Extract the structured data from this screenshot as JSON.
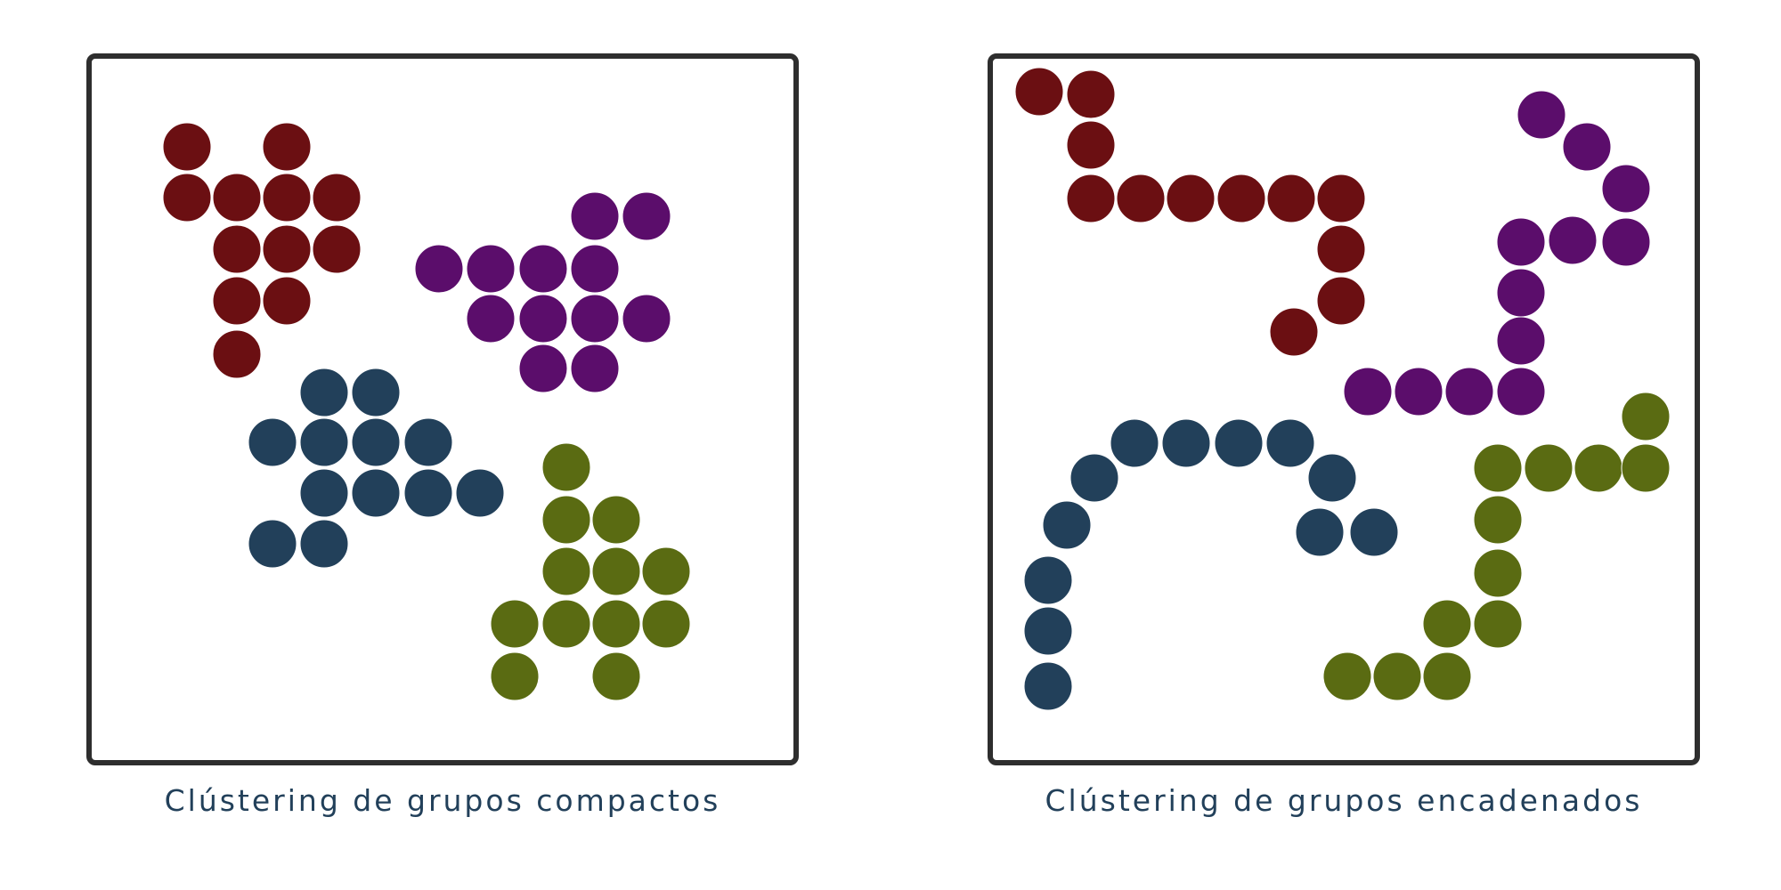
{
  "colors": {
    "red": "#6b0f12",
    "purple": "#5b0d6b",
    "navy": "#22405a",
    "olive": "#5a6b12",
    "frame": "#2e2e2e",
    "caption": "#22405a"
  },
  "panels": [
    {
      "caption": "Clústering de grupos compactos",
      "clusters": [
        {
          "color": "red",
          "points": [
            [
              210,
              165
            ],
            [
              322,
              165
            ],
            [
              210,
              222
            ],
            [
              266,
              222
            ],
            [
              322,
              222
            ],
            [
              378,
              222
            ],
            [
              266,
              280
            ],
            [
              322,
              280
            ],
            [
              378,
              280
            ],
            [
              266,
              338
            ],
            [
              322,
              338
            ],
            [
              266,
              398
            ]
          ]
        },
        {
          "color": "purple",
          "points": [
            [
              668,
              243
            ],
            [
              726,
              243
            ],
            [
              493,
              302
            ],
            [
              551,
              302
            ],
            [
              610,
              302
            ],
            [
              668,
              302
            ],
            [
              551,
              358
            ],
            [
              610,
              358
            ],
            [
              668,
              358
            ],
            [
              726,
              358
            ],
            [
              610,
              414
            ],
            [
              668,
              414
            ]
          ]
        },
        {
          "color": "navy",
          "points": [
            [
              364,
              441
            ],
            [
              422,
              441
            ],
            [
              306,
              497
            ],
            [
              364,
              497
            ],
            [
              422,
              497
            ],
            [
              481,
              497
            ],
            [
              364,
              554
            ],
            [
              422,
              554
            ],
            [
              481,
              554
            ],
            [
              539,
              554
            ],
            [
              306,
              611
            ],
            [
              364,
              611
            ]
          ]
        },
        {
          "color": "olive",
          "points": [
            [
              636,
              525
            ],
            [
              636,
              584
            ],
            [
              692,
              584
            ],
            [
              636,
              642
            ],
            [
              692,
              642
            ],
            [
              748,
              642
            ],
            [
              578,
              701
            ],
            [
              636,
              701
            ],
            [
              692,
              701
            ],
            [
              748,
              701
            ],
            [
              578,
              760
            ],
            [
              692,
              760
            ]
          ]
        }
      ]
    },
    {
      "caption": "Clústering de grupos encadenados",
      "clusters": [
        {
          "color": "red",
          "points": [
            [
              1167,
              103
            ],
            [
              1225,
              106
            ],
            [
              1225,
              163
            ],
            [
              1225,
              223
            ],
            [
              1281,
              223
            ],
            [
              1337,
              223
            ],
            [
              1394,
              223
            ],
            [
              1450,
              223
            ],
            [
              1506,
              223
            ],
            [
              1506,
              280
            ],
            [
              1506,
              338
            ],
            [
              1453,
              373
            ]
          ]
        },
        {
          "color": "purple",
          "points": [
            [
              1731,
              129
            ],
            [
              1782,
              165
            ],
            [
              1826,
              212
            ],
            [
              1826,
              272
            ],
            [
              1766,
              270
            ],
            [
              1708,
              272
            ],
            [
              1708,
              329
            ],
            [
              1708,
              383
            ],
            [
              1708,
              440
            ],
            [
              1650,
              440
            ],
            [
              1593,
              440
            ],
            [
              1536,
              440
            ]
          ]
        },
        {
          "color": "navy",
          "points": [
            [
              1274,
              498
            ],
            [
              1332,
              498
            ],
            [
              1391,
              498
            ],
            [
              1449,
              498
            ],
            [
              1229,
              537
            ],
            [
              1496,
              537
            ],
            [
              1198,
              590
            ],
            [
              1482,
              598
            ],
            [
              1543,
              598
            ],
            [
              1177,
              652
            ],
            [
              1177,
              709
            ],
            [
              1177,
              771
            ]
          ]
        },
        {
          "color": "olive",
          "points": [
            [
              1848,
              468
            ],
            [
              1682,
              526
            ],
            [
              1739,
              526
            ],
            [
              1795,
              526
            ],
            [
              1848,
              526
            ],
            [
              1682,
              584
            ],
            [
              1682,
              644
            ],
            [
              1682,
              701
            ],
            [
              1625,
              701
            ],
            [
              1513,
              760
            ],
            [
              1569,
              760
            ],
            [
              1625,
              760
            ]
          ]
        }
      ]
    }
  ]
}
